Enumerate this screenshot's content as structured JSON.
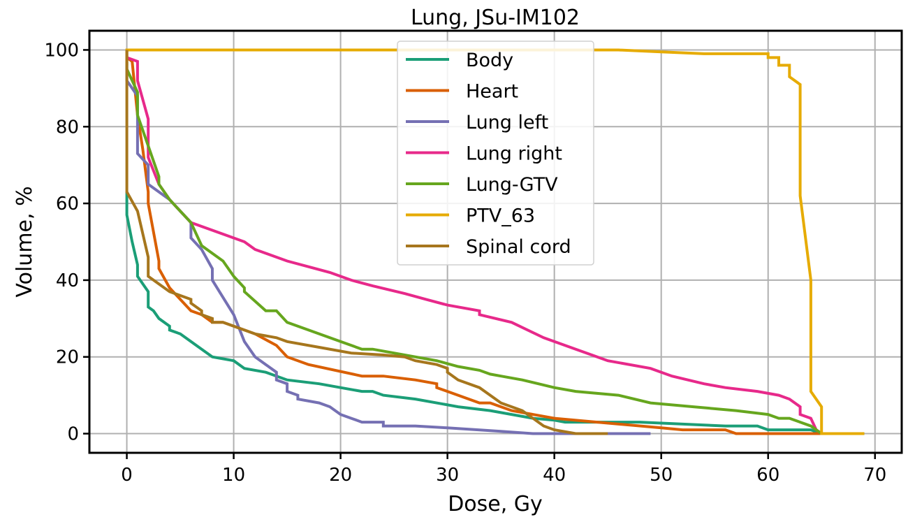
{
  "chart_data": {
    "type": "line",
    "title": "Lung, JSu-IM102",
    "xlabel": "Dose, Gy",
    "ylabel": "Volume, %",
    "xlim": [
      -3.5,
      72.5
    ],
    "ylim": [
      -5,
      105
    ],
    "xticks": [
      0,
      10,
      20,
      30,
      40,
      50,
      60,
      70
    ],
    "yticks": [
      0,
      20,
      40,
      60,
      80,
      100
    ],
    "grid": true,
    "legend_position": "top-center",
    "series": [
      {
        "name": "Body",
        "color": "#1b9e77",
        "x": [
          0,
          0,
          0.5,
          1,
          1,
          2,
          2,
          2.5,
          3,
          4,
          4,
          5,
          6,
          7,
          8,
          10,
          11,
          13,
          14,
          15,
          18,
          20,
          22,
          23,
          24,
          27,
          31,
          34,
          36,
          38,
          40,
          41,
          42,
          44,
          48,
          56,
          59,
          60,
          63,
          64,
          65,
          69
        ],
        "y": [
          63,
          57,
          50,
          44,
          41,
          37,
          33,
          32,
          30,
          28,
          27,
          26,
          24,
          22,
          20,
          19,
          17,
          16,
          15,
          14,
          13,
          12,
          11,
          11,
          10,
          9,
          7,
          6,
          5,
          4,
          3.5,
          3,
          3,
          3,
          3,
          2,
          2,
          1,
          1,
          1,
          0,
          0
        ]
      },
      {
        "name": "Heart",
        "color": "#d95f02",
        "x": [
          0,
          0.5,
          1,
          1.5,
          2,
          2,
          3,
          3,
          4,
          5,
          6,
          7,
          8,
          9,
          10,
          12,
          14,
          15,
          17,
          22,
          24,
          27,
          29,
          29,
          31,
          33,
          34,
          36,
          40,
          44,
          50,
          52,
          56,
          57,
          65
        ],
        "y": [
          98,
          97,
          83,
          74,
          63,
          60,
          45,
          43,
          38,
          35,
          32,
          31,
          29,
          29,
          28,
          26,
          23,
          20,
          18,
          15,
          15,
          14,
          13,
          12,
          10,
          8,
          8,
          6,
          4,
          3,
          1.5,
          1,
          1,
          0,
          0
        ]
      },
      {
        "name": "Lung left",
        "color": "#7570b3",
        "x": [
          0,
          0,
          1,
          1,
          2,
          2,
          3,
          4,
          5,
          6,
          6,
          7,
          8,
          8,
          10,
          11,
          12,
          13,
          14,
          14,
          15,
          15,
          16,
          16,
          18,
          19,
          20,
          21,
          22,
          24,
          24,
          27,
          30,
          35,
          38,
          40,
          42,
          45,
          49
        ],
        "y": [
          100,
          92,
          88,
          73,
          70,
          65,
          63,
          61,
          58,
          55,
          51,
          48,
          43,
          40,
          31,
          24,
          20,
          18,
          16,
          14,
          13,
          11,
          10,
          9,
          8,
          7,
          5,
          4,
          3,
          3,
          2,
          2,
          1.5,
          0.6,
          0,
          0,
          0,
          0,
          0
        ]
      },
      {
        "name": "Lung right",
        "color": "#e7298a",
        "x": [
          0,
          0,
          1,
          1,
          2,
          2,
          3,
          4,
          5,
          6,
          8,
          9,
          11,
          12,
          15,
          19,
          21,
          23,
          26,
          28,
          30,
          33,
          33,
          36,
          39,
          42,
          45,
          49,
          51,
          54,
          56,
          59,
          61,
          62,
          63,
          63,
          64,
          64.5,
          65,
          69
        ],
        "y": [
          100,
          98,
          97,
          92,
          82,
          72,
          65,
          61,
          58,
          55,
          53,
          52,
          50,
          48,
          45,
          42,
          40,
          38.5,
          36.5,
          35,
          33.5,
          32,
          31,
          29,
          25,
          22,
          19,
          17,
          15,
          13,
          12,
          11,
          10,
          9,
          7,
          5,
          4,
          1,
          0,
          0
        ]
      },
      {
        "name": "Lung-GTV",
        "color": "#66a61e",
        "x": [
          0,
          0,
          1,
          1,
          2,
          3,
          3,
          4,
          5,
          6,
          7,
          9,
          10,
          11,
          11,
          13,
          14,
          15,
          17,
          20,
          22,
          23,
          26,
          29,
          31,
          33,
          34,
          35,
          37,
          40,
          42,
          46,
          49,
          53,
          57,
          60,
          61,
          62,
          63,
          64,
          65,
          69
        ],
        "y": [
          97,
          95,
          89,
          83,
          75,
          67,
          65,
          61,
          58,
          55,
          49,
          45,
          41,
          38,
          37,
          32,
          32,
          29,
          27,
          24,
          22,
          22,
          20.5,
          19,
          17.5,
          16.5,
          15.5,
          15,
          14,
          12,
          11,
          10,
          8,
          7,
          6,
          5,
          4,
          4,
          3,
          2,
          0,
          0
        ]
      },
      {
        "name": "PTV_63",
        "color": "#e6ab02",
        "x": [
          0,
          0,
          1,
          45,
          46,
          50,
          54,
          59,
          60,
          60,
          61,
          61,
          62,
          62,
          63,
          63,
          64,
          64,
          65,
          65,
          66,
          69
        ],
        "y": [
          96,
          100,
          100,
          100,
          100,
          99.5,
          99,
          99,
          99,
          98,
          98,
          96,
          96,
          93,
          91,
          62,
          40,
          11,
          7,
          0,
          0,
          0
        ]
      },
      {
        "name": "Spinal cord",
        "color": "#a6761d",
        "x": [
          0,
          0,
          1,
          2,
          2,
          3,
          4,
          5,
          6,
          6,
          7,
          7,
          8,
          8,
          9,
          10,
          12,
          14,
          15,
          18,
          21,
          24,
          26,
          27,
          29,
          30,
          30,
          31,
          33,
          34,
          35,
          37,
          38,
          39,
          40,
          42,
          45
        ],
        "y": [
          100,
          63,
          58,
          46,
          41,
          39,
          37,
          36,
          35,
          34,
          32,
          31,
          30,
          29,
          29,
          28,
          26,
          25,
          24,
          22.5,
          21,
          20.5,
          20,
          19,
          18,
          17,
          16,
          14,
          12,
          10,
          8,
          6,
          4,
          2,
          1,
          0,
          0
        ]
      }
    ]
  }
}
